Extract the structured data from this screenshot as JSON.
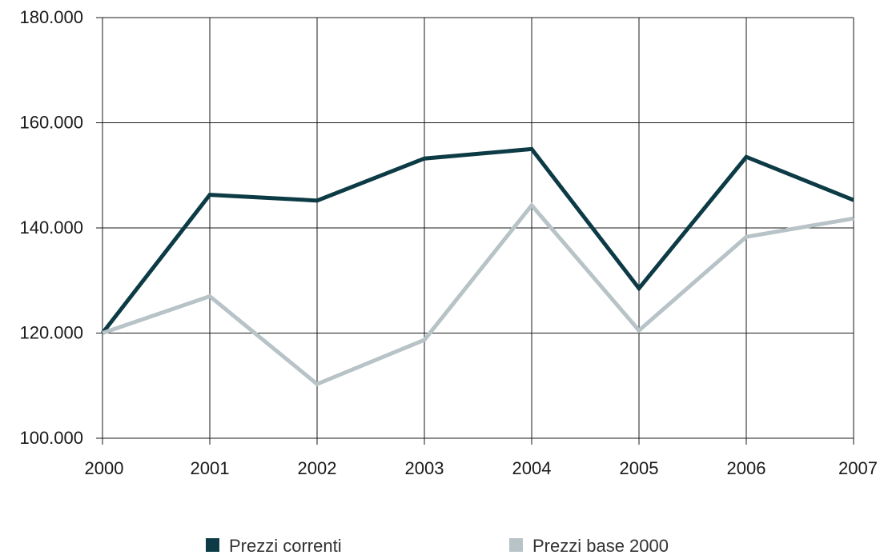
{
  "chart_data": {
    "type": "line",
    "title": "",
    "xlabel": "",
    "ylabel": "",
    "categories": [
      "2000",
      "2001",
      "2002",
      "2003",
      "2004",
      "2005",
      "2006",
      "2007"
    ],
    "y_ticks": [
      "100.000",
      "120.000",
      "140.000",
      "160.000",
      "180.000"
    ],
    "ylim": [
      100000,
      180000
    ],
    "grid": true,
    "legend_position": "bottom",
    "series": [
      {
        "name": "Prezzi correnti",
        "color": "#0d3b45",
        "values": [
          120000,
          146300,
          145200,
          153200,
          155000,
          128500,
          153500,
          145300
        ]
      },
      {
        "name": "Prezzi base 2000",
        "color": "#b8c3c7",
        "values": [
          120000,
          127000,
          110300,
          118700,
          144300,
          120500,
          138300,
          141800
        ]
      }
    ]
  }
}
